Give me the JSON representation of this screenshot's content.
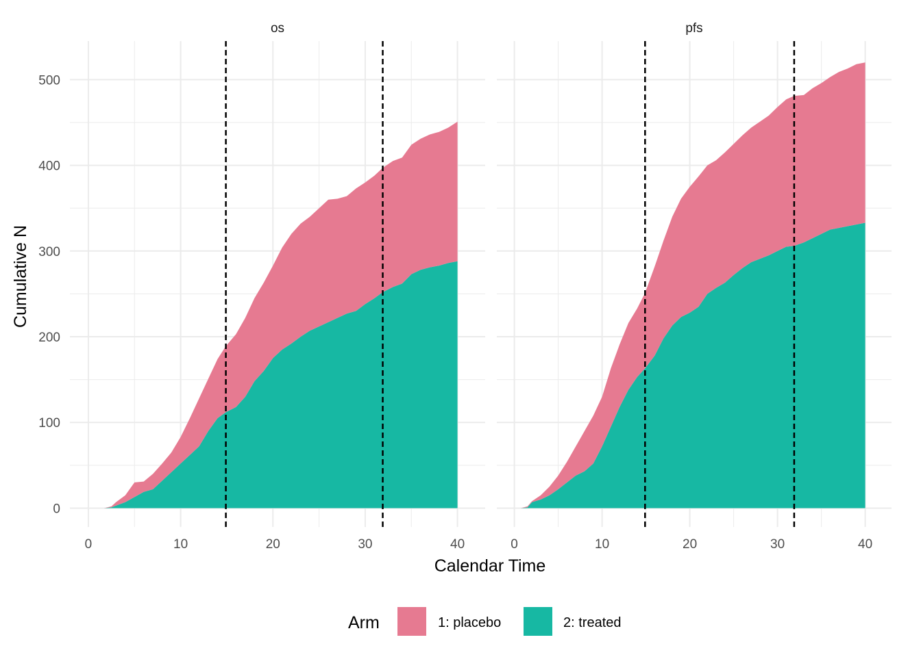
{
  "chart_data": {
    "type": "area",
    "stacked": true,
    "xlabel": "Calendar Time",
    "ylabel": "Cumulative N",
    "xlim": [
      -2,
      43
    ],
    "ylim": [
      -22,
      545
    ],
    "x_ticks": [
      0,
      10,
      20,
      30,
      40
    ],
    "y_ticks": [
      0,
      100,
      200,
      300,
      400,
      500
    ],
    "grid": true,
    "vlines": {
      "x": [
        14.9,
        31.9
      ],
      "style": "dashed",
      "color": "#000000"
    },
    "legend": {
      "title": "Arm",
      "placement": "bottom",
      "entries": [
        {
          "label": "1: placebo",
          "color": "#E67A91"
        },
        {
          "label": "2: treated",
          "color": "#17B8A3"
        }
      ]
    },
    "panels": [
      {
        "strip": "os",
        "x": [
          1.7,
          2.5,
          3,
          4,
          5,
          6,
          7,
          8,
          9,
          10,
          11,
          12,
          13,
          14,
          14.9,
          16,
          17,
          18,
          19,
          20,
          21,
          22,
          23,
          24,
          25,
          26,
          27,
          28,
          29,
          30,
          31,
          31.9,
          33,
          34,
          35,
          36,
          37,
          38,
          39,
          40
        ],
        "series": [
          {
            "name": "2: treated",
            "values": [
              0,
              1,
              3,
              7,
              13,
              19,
              22,
              32,
              42,
              52,
              62,
              72,
              90,
              105,
              112,
              118,
              130,
              148,
              160,
              175,
              185,
              192,
              200,
              207,
              212,
              217,
              222,
              227,
              230,
              238,
              245,
              252,
              258,
              262,
              273,
              278,
              281,
              283,
              286,
              288
            ]
          },
          {
            "name": "1: placebo",
            "values": [
              0,
              1,
              4,
              8,
              17,
              12,
              18,
              20,
              23,
              31,
              43,
              56,
              61,
              69,
              77,
              85,
              92,
              97,
              103,
              108,
              119,
              128,
              132,
              133,
              138,
              143,
              139,
              137,
              143,
              142,
              143,
              145,
              147,
              147,
              151,
              153,
              155,
              156,
              158,
              163
            ]
          }
        ]
      },
      {
        "strip": "pfs",
        "x": [
          0.7,
          1.5,
          2,
          3,
          4,
          5,
          6,
          7,
          8,
          9,
          10,
          11,
          12,
          13,
          14,
          14.9,
          16,
          17,
          18,
          19,
          20,
          21,
          22,
          23,
          24,
          25,
          26,
          27,
          28,
          29,
          30,
          31,
          31.9,
          33,
          34,
          35,
          36,
          37,
          38,
          39,
          40
        ],
        "series": [
          {
            "name": "2: treated",
            "values": [
              0,
              1,
              7,
              10,
              15,
              22,
              30,
              38,
              43,
              52,
              72,
              95,
              118,
              138,
              153,
              163,
              178,
              198,
              213,
              223,
              228,
              235,
              250,
              257,
              263,
              272,
              280,
              287,
              291,
              295,
              300,
              305,
              306,
              310,
              315,
              320,
              325,
              327,
              329,
              331,
              333
            ]
          },
          {
            "name": "1: placebo",
            "values": [
              0,
              1,
              1,
              5,
              10,
              16,
              24,
              34,
              47,
              56,
              58,
              68,
              73,
              78,
              80,
              88,
              104,
              114,
              127,
              138,
              147,
              152,
              150,
              149,
              152,
              153,
              155,
              157,
              160,
              163,
              168,
              172,
              175,
              172,
              175,
              176,
              178,
              182,
              184,
              187,
              187
            ]
          }
        ]
      }
    ]
  }
}
